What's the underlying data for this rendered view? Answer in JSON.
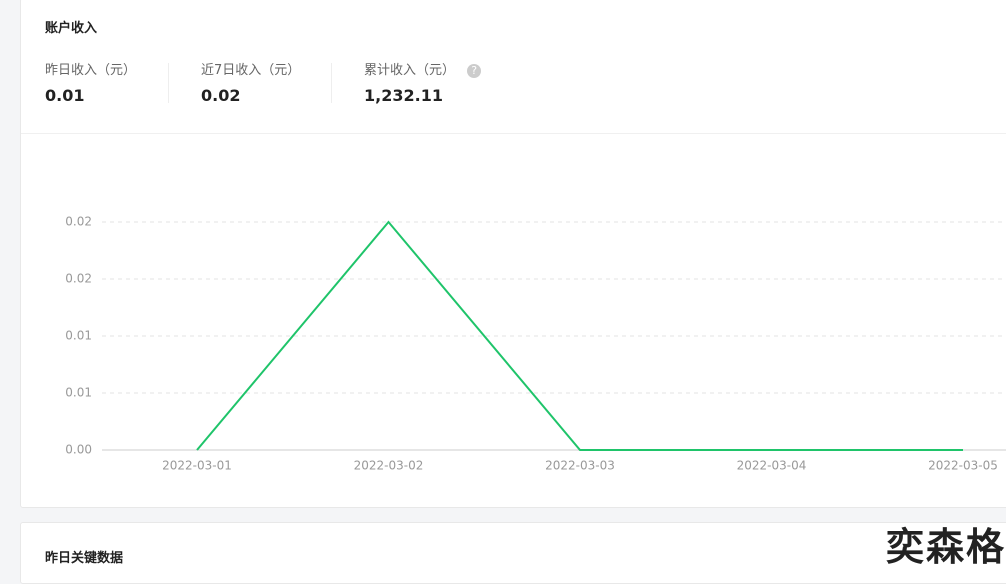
{
  "card1": {
    "title": "账户收入",
    "stats": [
      {
        "label": "昨日收入（元）",
        "value": "0.01"
      },
      {
        "label": "近7日收入（元）",
        "value": "0.02"
      },
      {
        "label": "累计收入（元）",
        "value": "1,232.11"
      }
    ],
    "help": "?"
  },
  "chart": {
    "type": "line",
    "categories": [
      "2022-03-01",
      "2022-03-02",
      "2022-03-03",
      "2022-03-04",
      "2022-03-05"
    ],
    "values": [
      0,
      0.02,
      0,
      0,
      0
    ],
    "color": "#1fc46a",
    "ylim": [
      0,
      0.02
    ],
    "yticks": [
      {
        "value": 0,
        "label": "0.00"
      },
      {
        "value": 0.005,
        "label": "0.01"
      },
      {
        "value": 0.01,
        "label": "0.01"
      },
      {
        "value": 0.015,
        "label": "0.02"
      },
      {
        "value": 0.02,
        "label": "0.02"
      }
    ],
    "grid": true
  },
  "card2": {
    "title": "昨日关键数据"
  },
  "watermark": "奕森格"
}
